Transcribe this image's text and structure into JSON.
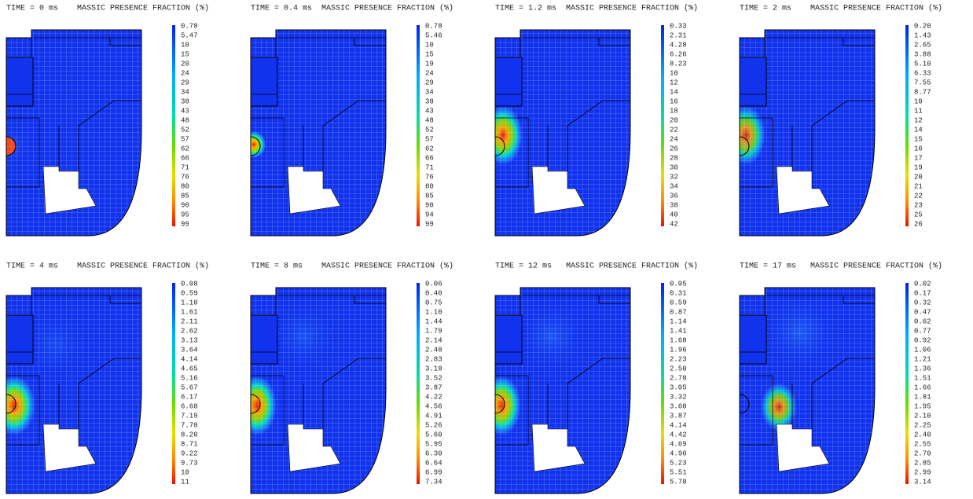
{
  "panels": [
    {
      "time": "TIME = 0 ms",
      "title": "MASSIC PRESENCE FRACTION (%)",
      "scale": [
        "0.78",
        "5.47",
        "10",
        "15",
        "20",
        "24",
        "29",
        "34",
        "38",
        "43",
        "48",
        "52",
        "57",
        "62",
        "66",
        "71",
        "76",
        "80",
        "85",
        "90",
        "95",
        "99"
      ]
    },
    {
      "time": "TIME = 0.4 ms",
      "title": "MASSIC PRESENCE FRACTION (%)",
      "scale": [
        "0.78",
        "5.46",
        "10",
        "15",
        "19",
        "24",
        "29",
        "34",
        "38",
        "43",
        "48",
        "52",
        "57",
        "62",
        "66",
        "71",
        "76",
        "80",
        "85",
        "90",
        "94",
        "99"
      ]
    },
    {
      "time": "TIME = 1.2 ms",
      "title": "MASSIC PRESENCE FRACTION (%)",
      "scale": [
        "0.33",
        "2.31",
        "4.28",
        "6.26",
        "8.23",
        "10",
        "12",
        "14",
        "16",
        "18",
        "20",
        "22",
        "24",
        "26",
        "28",
        "30",
        "32",
        "34",
        "36",
        "38",
        "40",
        "42"
      ]
    },
    {
      "time": "TIME = 2 ms",
      "title": "MASSIC PRESENCE FRACTION (%)",
      "scale": [
        "0.20",
        "1.43",
        "2.65",
        "3.88",
        "5.10",
        "6.33",
        "7.55",
        "8.77",
        "10",
        "11",
        "12",
        "14",
        "15",
        "16",
        "17",
        "19",
        "20",
        "21",
        "22",
        "23",
        "25",
        "26"
      ]
    },
    {
      "time": "TIME = 4 ms",
      "title": "MASSIC PRESENCE FRACTION (%)",
      "scale": [
        "0.08",
        "0.59",
        "1.10",
        "1.61",
        "2.11",
        "2.62",
        "3.13",
        "3.64",
        "4.14",
        "4.65",
        "5.16",
        "5.67",
        "6.17",
        "6.68",
        "7.19",
        "7.70",
        "8.20",
        "8.71",
        "9.22",
        "9.73",
        "10",
        "11"
      ]
    },
    {
      "time": "TIME = 8 ms",
      "title": "MASSIC PRESENCE FRACTION (%)",
      "scale": [
        "0.06",
        "0.40",
        "0.75",
        "1.10",
        "1.44",
        "1.79",
        "2.14",
        "2.48",
        "2.83",
        "3.18",
        "3.52",
        "3.87",
        "4.22",
        "4.56",
        "4.91",
        "5.26",
        "5.60",
        "5.95",
        "6.30",
        "6.64",
        "6.99",
        "7.34"
      ]
    },
    {
      "time": "TIME = 12 ms",
      "title": "MASSIC PRESENCE FRACTION (%)",
      "scale": [
        "0.05",
        "0.31",
        "0.59",
        "0.87",
        "1.14",
        "1.41",
        "1.68",
        "1.96",
        "2.23",
        "2.50",
        "2.78",
        "3.05",
        "3.32",
        "3.60",
        "3.87",
        "4.14",
        "4.42",
        "4.69",
        "4.96",
        "5.23",
        "5.51",
        "5.78"
      ]
    },
    {
      "time": "TIME = 17 ms",
      "title": "MASSIC PRESENCE FRACTION (%)",
      "scale": [
        "0.02",
        "0.17",
        "0.32",
        "0.47",
        "0.62",
        "0.77",
        "0.92",
        "1.06",
        "1.21",
        "1.36",
        "1.51",
        "1.66",
        "1.81",
        "1.95",
        "2.10",
        "2.25",
        "2.40",
        "2.55",
        "2.70",
        "2.85",
        "2.99",
        "3.14"
      ]
    }
  ]
}
